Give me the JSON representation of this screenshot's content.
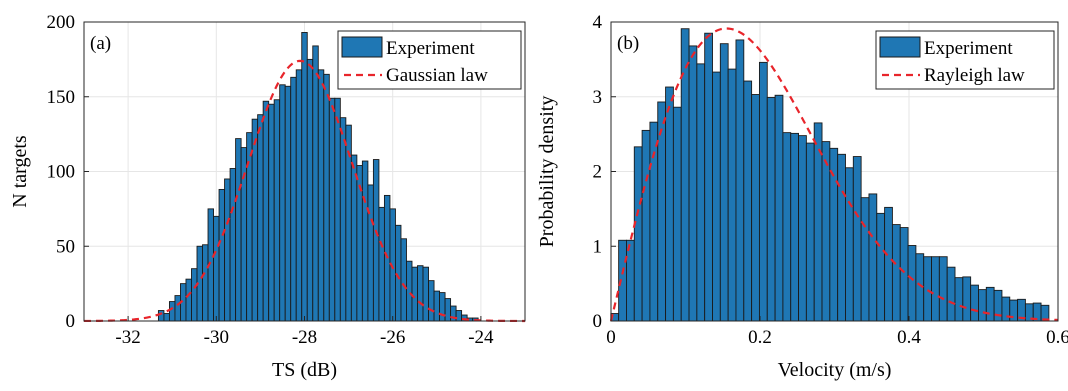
{
  "chart_data": [
    {
      "type": "bar",
      "panel": "(a)",
      "xlabel": "TS (dB)",
      "ylabel": "N targets",
      "xlim": [
        -33,
        -23
      ],
      "ylim": [
        0,
        200
      ],
      "xticks": [
        -32,
        -30,
        -28,
        -26,
        -24
      ],
      "xtick_labels": [
        "-32",
        "-30",
        "-28",
        "-26",
        "-24"
      ],
      "yticks": [
        0,
        50,
        100,
        150,
        200
      ],
      "ytick_labels": [
        "0",
        "50",
        "100",
        "150",
        "200"
      ],
      "grid": true,
      "legend_position": "top-right",
      "bin_width": 0.125,
      "series": [
        {
          "name": "Experiment",
          "kind": "histogram",
          "color": "#1f77b4",
          "bin_centers": [
            -31.25,
            -31.125,
            -31.0,
            -30.875,
            -30.75,
            -30.625,
            -30.5,
            -30.375,
            -30.25,
            -30.125,
            -30.0,
            -29.875,
            -29.75,
            -29.625,
            -29.5,
            -29.375,
            -29.25,
            -29.125,
            -29.0,
            -28.875,
            -28.75,
            -28.625,
            -28.5,
            -28.375,
            -28.25,
            -28.125,
            -28.0,
            -27.875,
            -27.75,
            -27.625,
            -27.5,
            -27.375,
            -27.25,
            -27.125,
            -27.0,
            -26.875,
            -26.75,
            -26.625,
            -26.5,
            -26.375,
            -26.25,
            -26.125,
            -26.0,
            -25.875,
            -25.75,
            -25.625,
            -25.5,
            -25.375,
            -25.25,
            -25.125,
            -25.0,
            -24.875,
            -24.75,
            -24.625,
            -24.5,
            -24.375,
            -24.25,
            -24.125
          ],
          "values": [
            7,
            5,
            13,
            17,
            25,
            28,
            35,
            50,
            51,
            75,
            70,
            88,
            95,
            102,
            122,
            116,
            126,
            135,
            138,
            147,
            145,
            148,
            158,
            157,
            163,
            168,
            193,
            175,
            184,
            168,
            165,
            149,
            149,
            136,
            131,
            111,
            104,
            107,
            91,
            108,
            76,
            84,
            75,
            64,
            55,
            40,
            36,
            37,
            36,
            27,
            20,
            19,
            15,
            10,
            7,
            4,
            2,
            2
          ]
        },
        {
          "name": "Gaussian law",
          "kind": "fit",
          "color": "#e8252b",
          "dash": true,
          "mu": -28.1,
          "sigma": 1.18,
          "amplitude": 174
        }
      ]
    },
    {
      "type": "bar",
      "panel": "(b)",
      "xlabel": "Velocity (m/s)",
      "ylabel": "Probability density",
      "xlim": [
        0,
        0.6
      ],
      "ylim": [
        0,
        4
      ],
      "xticks": [
        0,
        0.2,
        0.4,
        0.6
      ],
      "xtick_labels": [
        "0",
        "0.2",
        "0.4",
        "0.6"
      ],
      "yticks": [
        0,
        1,
        2,
        3,
        4
      ],
      "ytick_labels": [
        "0",
        "1",
        "2",
        "3",
        "4"
      ],
      "grid": true,
      "legend_position": "top-right",
      "bin_width": 0.0105,
      "series": [
        {
          "name": "Experiment",
          "kind": "histogram",
          "color": "#1f77b4",
          "bin_centers": [
            0.005,
            0.0155,
            0.026,
            0.0365,
            0.047,
            0.0575,
            0.068,
            0.0785,
            0.089,
            0.0995,
            0.11,
            0.1205,
            0.131,
            0.1415,
            0.152,
            0.1625,
            0.173,
            0.1835,
            0.194,
            0.2045,
            0.215,
            0.2255,
            0.236,
            0.2465,
            0.257,
            0.2675,
            0.278,
            0.2885,
            0.299,
            0.3095,
            0.32,
            0.3305,
            0.341,
            0.3515,
            0.362,
            0.3725,
            0.383,
            0.3935,
            0.404,
            0.4145,
            0.425,
            0.4355,
            0.446,
            0.4565,
            0.467,
            0.4775,
            0.488,
            0.4985,
            0.509,
            0.5195,
            0.53,
            0.5405,
            0.551,
            0.5615,
            0.572,
            0.5825
          ],
          "values": [
            0.1,
            1.08,
            1.08,
            2.33,
            2.55,
            2.66,
            2.93,
            3.13,
            2.86,
            3.91,
            3.68,
            3.44,
            3.85,
            3.33,
            3.71,
            3.37,
            3.76,
            3.21,
            3.03,
            3.46,
            2.99,
            3.02,
            2.52,
            2.51,
            2.48,
            2.38,
            2.65,
            2.4,
            2.31,
            2.23,
            2.05,
            2.2,
            1.65,
            1.7,
            1.44,
            1.52,
            1.29,
            1.25,
            1.01,
            0.9,
            0.86,
            0.86,
            0.86,
            0.72,
            0.58,
            0.59,
            0.48,
            0.42,
            0.45,
            0.41,
            0.32,
            0.28,
            0.29,
            0.23,
            0.24,
            0.21
          ]
        },
        {
          "name": "Rayleigh law",
          "kind": "fit",
          "color": "#e8252b",
          "dash": true,
          "sigma": 0.155
        }
      ]
    }
  ]
}
